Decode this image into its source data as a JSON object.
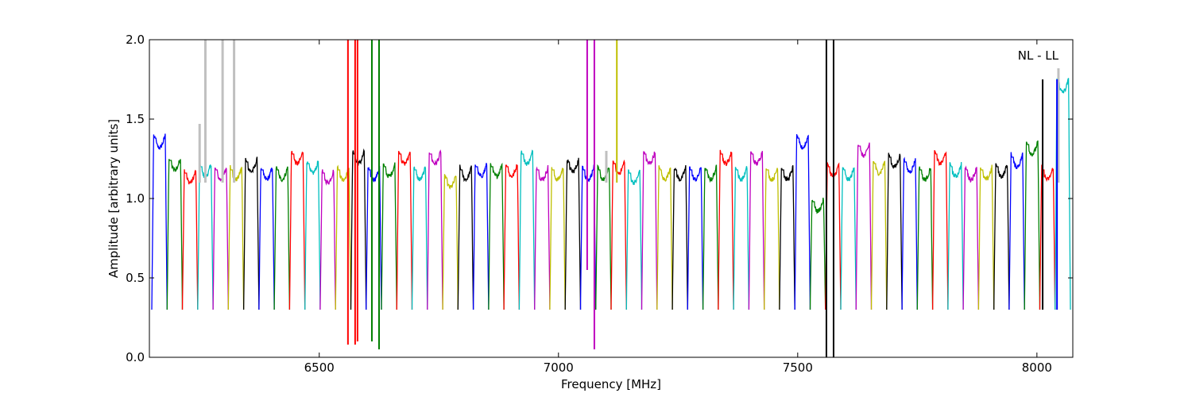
{
  "chart_data": {
    "type": "line",
    "title": "",
    "xlabel": "Frequency [MHz]",
    "ylabel": "Amplitude [arbitrary units]",
    "xlim": [
      6145,
      8075
    ],
    "ylim": [
      0.0,
      2.0
    ],
    "x_ticks": [
      6500,
      7000,
      7500,
      8000
    ],
    "y_ticks": [
      0.0,
      0.5,
      1.0,
      1.5,
      2.0
    ],
    "x_tick_labels": [
      "6500",
      "7000",
      "7500",
      "8000"
    ],
    "y_tick_labels": [
      "0.0",
      "0.5",
      "1.0",
      "1.5",
      "2.0"
    ],
    "annotation": "NL - LL",
    "grid": false,
    "legend": "none",
    "background_series_color": "#c0c0c0",
    "color_cycle": [
      "#0000ff",
      "#008000",
      "#ff0000",
      "#00bfbf",
      "#bf00bf",
      "#bfbf00",
      "#000000"
    ],
    "channel_width_mhz": 32,
    "channel_start_mhz": 6150,
    "channels_ordered": true,
    "channel_count": 60,
    "channel_colors": [
      "blue",
      "green",
      "red",
      "cyan",
      "magenta",
      "yellow",
      "black",
      "blue",
      "green",
      "red",
      "cyan",
      "magenta",
      "yellow",
      "black",
      "blue",
      "green",
      "red",
      "cyan",
      "magenta",
      "yellow",
      "black",
      "blue",
      "green",
      "red",
      "cyan",
      "magenta",
      "yellow",
      "black",
      "blue",
      "green",
      "red",
      "cyan",
      "magenta",
      "yellow",
      "black",
      "blue",
      "green",
      "red",
      "cyan",
      "magenta",
      "yellow",
      "black",
      "blue",
      "green",
      "red",
      "cyan",
      "magenta",
      "yellow",
      "black",
      "blue",
      "green",
      "red",
      "cyan",
      "magenta",
      "yellow",
      "black",
      "blue",
      "green",
      "red",
      "cyan"
    ],
    "channel_peak_levels": [
      1.4,
      1.26,
      1.18,
      1.22,
      1.2,
      1.2,
      1.25,
      1.2,
      1.2,
      1.3,
      1.24,
      1.18,
      1.2,
      1.3,
      1.2,
      1.22,
      1.3,
      1.2,
      1.3,
      1.15,
      1.2,
      1.22,
      1.22,
      1.22,
      1.3,
      1.2,
      1.2,
      1.25,
      1.2,
      1.2,
      1.24,
      1.18,
      1.3,
      1.2,
      1.2,
      1.2,
      1.2,
      1.3,
      1.2,
      1.3,
      1.2,
      1.2,
      1.4,
      1.0,
      1.22,
      1.2,
      1.35,
      1.24,
      1.28,
      1.25,
      1.2,
      1.3,
      1.22,
      1.2,
      1.2,
      1.22,
      1.28,
      1.36,
      1.2,
      1.75
    ],
    "channel_trough_level": 0.3,
    "rfi_spikes": [
      {
        "x": 6560,
        "y_min": 0.08,
        "y_max": 2.0,
        "color": "red"
      },
      {
        "x": 6575,
        "y_min": 0.08,
        "y_max": 2.0,
        "color": "red"
      },
      {
        "x": 6580,
        "y_min": 0.1,
        "y_max": 2.0,
        "color": "red"
      },
      {
        "x": 6610,
        "y_min": 0.1,
        "y_max": 2.0,
        "color": "green"
      },
      {
        "x": 6625,
        "y_min": 0.05,
        "y_max": 2.0,
        "color": "green"
      },
      {
        "x": 7060,
        "y_min": 0.55,
        "y_max": 2.0,
        "color": "magenta"
      },
      {
        "x": 7075,
        "y_min": 0.05,
        "y_max": 2.0,
        "color": "magenta"
      },
      {
        "x": 7122,
        "y_min": 1.1,
        "y_max": 2.0,
        "color": "yellow"
      },
      {
        "x": 7560,
        "y_min": 0.0,
        "y_max": 2.0,
        "color": "black"
      },
      {
        "x": 7575,
        "y_min": 0.0,
        "y_max": 2.0,
        "color": "black"
      },
      {
        "x": 8012,
        "y_min": 0.3,
        "y_max": 1.75,
        "color": "black"
      },
      {
        "x": 8042,
        "y_min": 0.3,
        "y_max": 1.75,
        "color": "blue"
      }
    ],
    "grey_spikes": [
      {
        "x": 6262,
        "y_max": 2.0
      },
      {
        "x": 6298,
        "y_max": 2.0
      },
      {
        "x": 6322,
        "y_max": 2.0
      },
      {
        "x": 6250,
        "y_max": 1.47
      },
      {
        "x": 7100,
        "y_max": 1.3
      },
      {
        "x": 8045,
        "y_max": 1.82
      }
    ]
  }
}
